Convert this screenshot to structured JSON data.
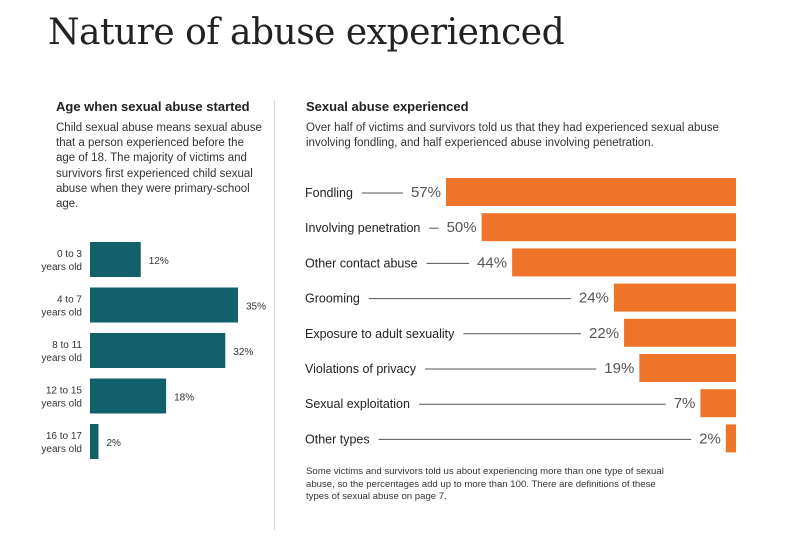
{
  "page": {
    "title": "Nature of abuse experienced"
  },
  "left": {
    "heading": "Age when sexual abuse started",
    "description": "Child sexual abuse means sexual abuse that a person experienced before the age of 18. The majority of victims and survivors first experienced child sexual abuse when they were primary-school age."
  },
  "right": {
    "heading": "Sexual abuse experienced",
    "description": "Over half of victims and survivors told us that they had experienced sexual abuse involving fondling, and half experienced abuse involving penetration.",
    "footnote": "Some victims and survivors told us about experiencing more than one type of sexual abuse, so the percentages add up to more than 100. There are definitions of these types of sexual abuse on page 7."
  },
  "chart_data": [
    {
      "type": "bar",
      "orientation": "horizontal",
      "title": "Age when sexual abuse started",
      "categories": [
        [
          "0 to 3",
          "years old"
        ],
        [
          "4 to 7",
          "years old"
        ],
        [
          "8 to 11",
          "years old"
        ],
        [
          "12 to 15",
          "years old"
        ],
        [
          "16 to 17",
          "years old"
        ]
      ],
      "values": [
        12,
        35,
        32,
        18,
        2
      ],
      "value_labels": [
        "12%",
        "35%",
        "32%",
        "18%",
        "2%"
      ],
      "unit": "%",
      "xlim": [
        0,
        35
      ],
      "grid": false,
      "color": "#11606a"
    },
    {
      "type": "bar",
      "orientation": "horizontal",
      "title": "Sexual abuse experienced",
      "categories": [
        "Fondling",
        "Involving penetration",
        "Other contact abuse",
        "Grooming",
        "Exposure to adult sexuality",
        "Violations of privacy",
        "Sexual exploitation",
        "Other types"
      ],
      "values": [
        57,
        50,
        44,
        24,
        22,
        19,
        7,
        2
      ],
      "value_labels": [
        "57%",
        "50%",
        "44%",
        "24%",
        "22%",
        "19%",
        "7%",
        "2%"
      ],
      "unit": "%",
      "xlim": [
        0,
        57
      ],
      "grid": false,
      "bar_anchor": "right",
      "color": "#ee742a",
      "leader_color": "#555555"
    }
  ]
}
